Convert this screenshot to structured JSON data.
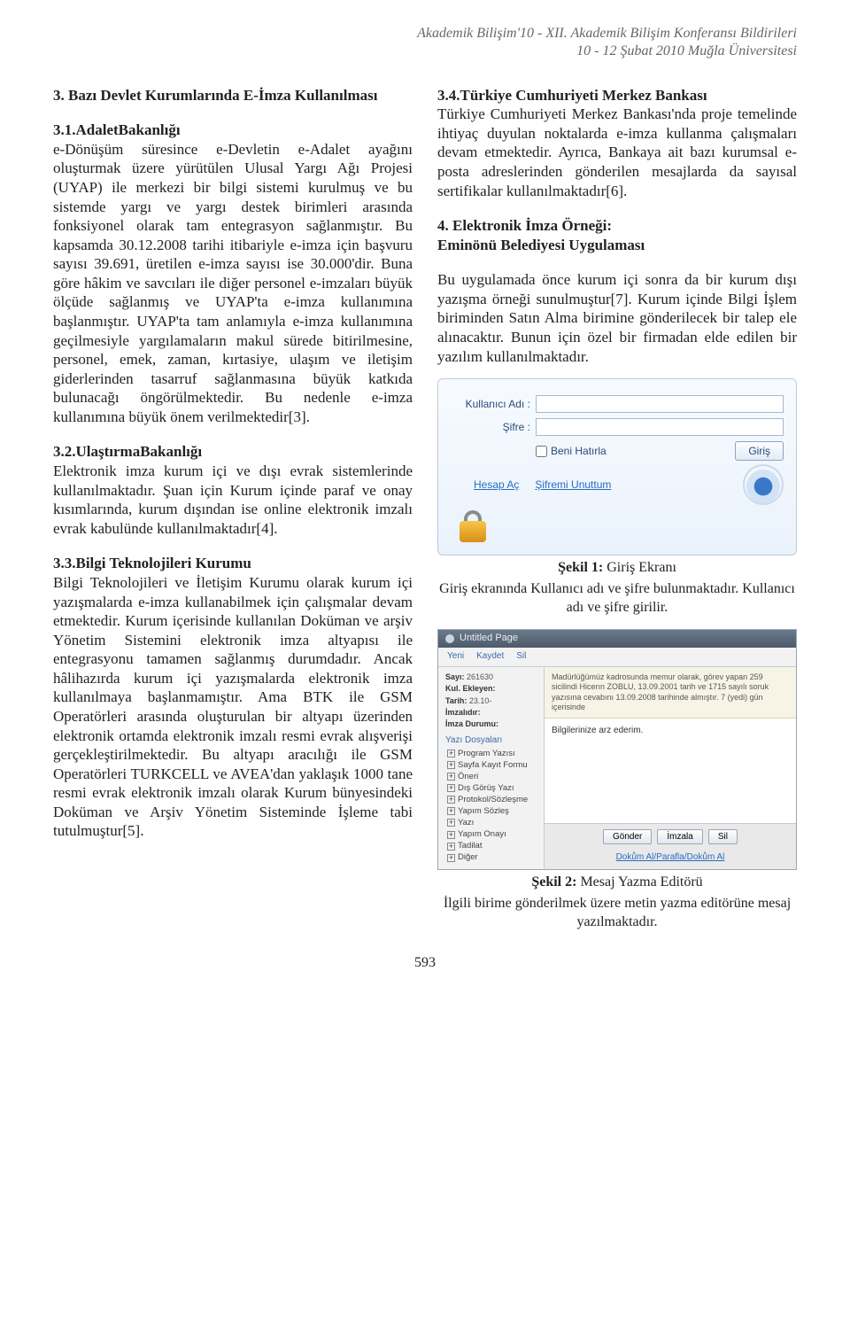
{
  "header": {
    "line1": "Akademik Bilişim'10 - XII. Akademik Bilişim Konferansı Bildirileri",
    "line2": "10 - 12 Şubat 2010  Muğla Üniversitesi"
  },
  "left": {
    "sec3_title": "3. Bazı Devlet Kurumlarında E-İmza Kullanılması",
    "sec31_title": "3.1.AdaletBakanlığı",
    "sec31_body": "e-Dönüşüm süresince e-Devletin e-Adalet ayağını oluşturmak üzere yürütülen Ulusal Yargı Ağı Projesi (UYAP) ile merkezi bir bilgi sistemi kurulmuş ve bu sistemde yargı ve yargı destek birimleri arasında fonksiyonel olarak tam entegrasyon sağlanmıştır. Bu kapsamda 30.12.2008 tarihi itibariyle e-imza için başvuru sayısı 39.691, üretilen e-imza sayısı ise 30.000'dir. Buna göre hâkim ve savcıları ile diğer personel e-imzaları büyük ölçüde sağlanmış ve UYAP'ta e-imza kullanımına başlanmıştır. UYAP'ta tam anlamıyla e-imza kullanımına geçilmesiyle yargılamaların makul sürede bitirilmesine, personel, emek, zaman, kırtasiye, ulaşım ve iletişim giderlerinden tasarruf sağlanmasına büyük katkıda bulunacağı öngörülmektedir. Bu nedenle e-imza kullanımına büyük önem verilmektedir[3].",
    "sec32_title": "3.2.UlaştırmaBakanlığı",
    "sec32_body": "Elektronik imza kurum içi ve dışı evrak sistemlerinde kullanılmaktadır. Şuan için Kurum içinde paraf ve onay kısımlarında, kurum dışından ise online elektronik imzalı evrak kabulünde kullanılmaktadır[4].",
    "sec33_title": "3.3.Bilgi Teknolojileri Kurumu",
    "sec33_body": "Bilgi Teknolojileri ve İletişim Kurumu olarak kurum içi yazışmalarda e-imza kullanabilmek için çalışmalar devam etmektedir. Kurum içerisinde kullanılan Doküman ve arşiv Yönetim Sistemini elektronik imza altyapısı ile entegrasyonu tamamen sağlanmış durumdadır. Ancak hâlihazırda kurum içi yazışmalarda elektronik imza kullanılmaya başlanmamıştır. Ama BTK ile GSM Operatörleri arasında oluşturulan bir altyapı üzerinden elektronik ortamda elektronik imzalı resmi evrak alışverişi gerçekleştirilmektedir. Bu altyapı aracılığı ile GSM Operatörleri TURKCELL ve AVEA'dan yaklaşık 1000 tane resmi evrak elektronik imzalı olarak Kurum bünyesindeki Doküman ve Arşiv Yönetim Sisteminde İşleme tabi tutulmuştur[5]."
  },
  "right": {
    "sec34_title": "3.4.Türkiye Cumhuriyeti Merkez Bankası",
    "sec34_body": "Türkiye Cumhuriyeti Merkez Bankası'nda proje temelinde ihtiyaç duyulan noktalarda e-imza kullanma çalışmaları devam etmektedir. Ayrıca, Bankaya ait bazı kurumsal e-posta adreslerinden gönderilen mesajlarda da sayısal sertifikalar kullanılmaktadır[6].",
    "sec4_title1": "4. Elektronik İmza Örneği:",
    "sec4_title2": "Eminönü Belediyesi Uygulaması",
    "sec4_body": "Bu uygulamada önce kurum içi sonra da bir kurum dışı yazışma örneği sunulmuştur[7]. Kurum içinde Bilgi İşlem biriminden Satın Alma birimine gönderilecek bir talep ele alınacaktır. Bunun için özel bir firmadan elde edilen bir yazılım kullanılmaktadır.",
    "fig1": {
      "user_label": "Kullanıcı Adı :",
      "pass_label": "Şifre :",
      "remember_label": "Beni Hatırla",
      "login_btn": "Giriş",
      "link_signup": "Hesap Aç",
      "link_forgot": "Şifremi Unuttum",
      "caption_bold": "Şekil 1:",
      "caption_rest": " Giriş Ekranı",
      "desc": "Giriş ekranında Kullanıcı adı ve şifre bulunmaktadır. Kullanıcı adı ve şifre girilir."
    },
    "fig2": {
      "window_title": "Untitled Page",
      "toolbar_items": [
        "Yeni",
        "Kaydet",
        "Sil"
      ],
      "meta": {
        "sayi_l": "Sayı:",
        "sayi_v": "261630",
        "ekleyen_l": "Kul. Ekleyen:",
        "tarih_l": "Tarih:",
        "tarih_v": "23.10-",
        "imzalı_l": "İmzalıdır:",
        "durum_l": "İmza Durumu:"
      },
      "tree_head": "Yazı Dosyaları",
      "tree": [
        "Program Yazısı",
        "Sayfa Kayıt Formu",
        "Öneri",
        "Dış Görüş Yazı",
        "Protokol/Sözleşme",
        "Yapım Sözleş",
        "Yazı",
        "Yapım Onayı",
        "Tadilat",
        "Diğer"
      ],
      "msg_header": "Madürlüğümüz kadrosunda memur olarak, görev yapan 259 sicilindi Hicerın ZOBLU, 13.09.2001 tarih ve 1715 sayılı soruk yazısına cevabını 13.09.2008 tarihinde almıştır. 7 (yedi) gün içerisinde",
      "msg_body": "Bilgilerinize arz ederim.",
      "btn_send": "Gönder",
      "btn_sign": "İmzala",
      "btn_cancel": "Sil",
      "footer_link": "Dokům Al/Parafla/Dokům Al",
      "caption_bold": "Şekil 2:",
      "caption_rest": " Mesaj Yazma Editörü",
      "desc": "İlgili birime gönderilmek üzere metin yazma editörüne mesaj yazılmaktadır."
    }
  },
  "page_number": "593"
}
